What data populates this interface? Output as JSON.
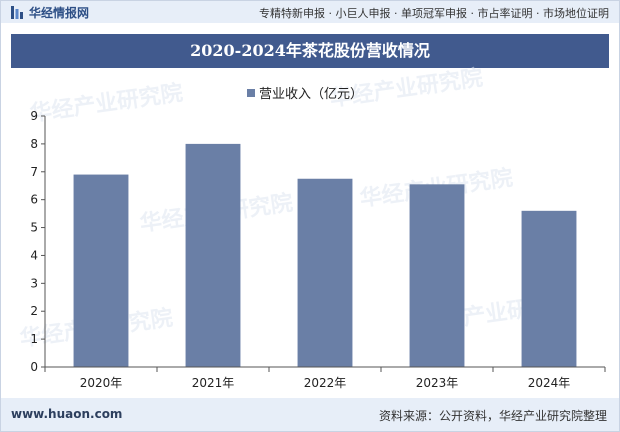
{
  "header": {
    "brand_name": "华经情报网",
    "tagline": "专精特新申报 · 小巨人申报 · 单项冠军申报 · 市占率证明 · 市场地位证明"
  },
  "chart_data": {
    "type": "bar",
    "title": "2020-2024年茶花股份营收情况",
    "xlabel": "",
    "ylabel": "",
    "categories": [
      "2020年",
      "2021年",
      "2022年",
      "2023年",
      "2024年"
    ],
    "series": [
      {
        "name": "营业收入（亿元）",
        "values": [
          6.9,
          8.0,
          6.75,
          6.55,
          5.6
        ]
      }
    ],
    "ylim": [
      0,
      9
    ],
    "yticks": [
      0,
      1,
      2,
      3,
      4,
      5,
      6,
      7,
      8,
      9
    ],
    "grid": false,
    "legend_position": "top-center",
    "bar_color": "#6a7fa6"
  },
  "watermark": "华经产业研究院",
  "footer": {
    "url": "www.huaon.com",
    "source": "资料来源：公开资料，华经产业研究院整理"
  }
}
